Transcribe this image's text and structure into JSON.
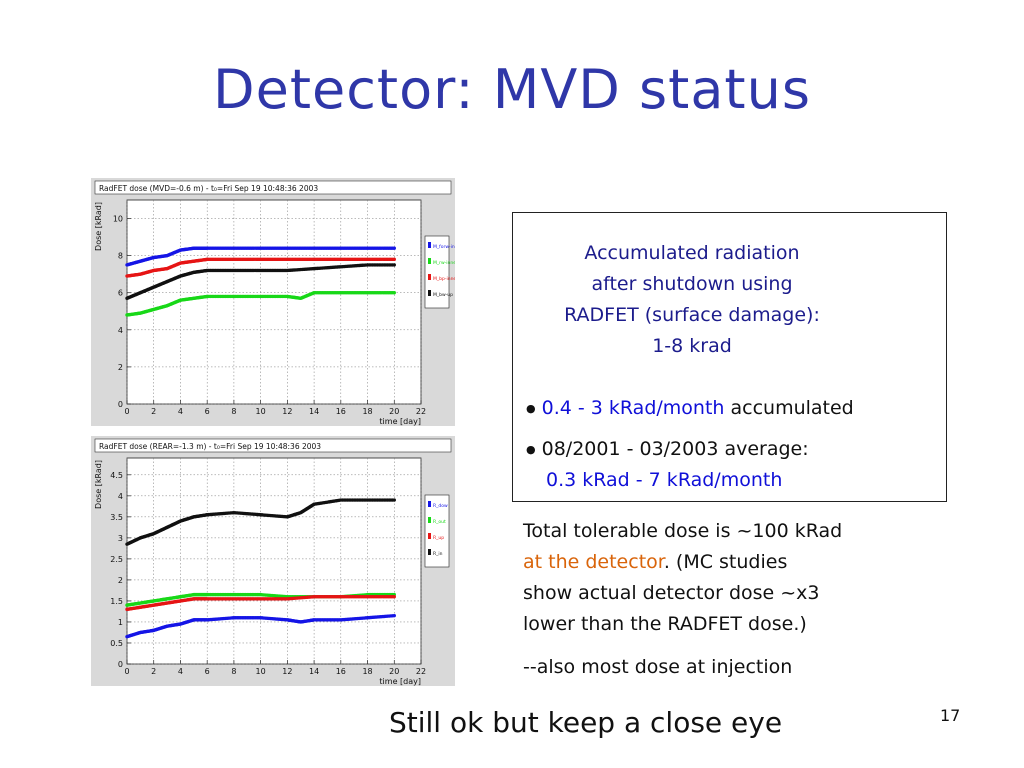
{
  "slide": {
    "title": "Detector: MVD status",
    "footer": "Still ok but keep a close eye",
    "page_number": "17"
  },
  "box": {
    "heading": [
      "Accumulated radiation",
      "after shutdown using",
      "RADFET (surface damage):",
      "1-8 krad"
    ],
    "bullet1_blue": "0.4 - 3 kRad/month",
    "bullet1_rest": " accumulated",
    "bullet2_line1": "08/2001 - 03/2003 average:",
    "bullet2_line2": "0.3 kRad - 7 kRad/month"
  },
  "text": {
    "l1": "Total tolerable dose is ~100 kRad",
    "l2_orange": "at the detector",
    "l2_rest": ". (MC studies",
    "l3": "show actual detector dose ~x3",
    "l4": "lower than the RADFET dose.)",
    "note": "--also most dose at injection"
  },
  "colors": {
    "title": "#2f37a8",
    "accent_blue": "#1010d8",
    "accent_orange": "#d9640a"
  },
  "chart_data": [
    {
      "type": "scatter",
      "title": "RadFET dose (MVD=-0.6 m) - t₀=Fri Sep 19 10:48:36 2003",
      "xlabel": "time [day]",
      "ylabel": "Dose [kRad]",
      "xlim": [
        0,
        22
      ],
      "ylim": [
        0,
        11
      ],
      "xticks": [
        0,
        2,
        4,
        6,
        8,
        10,
        12,
        14,
        16,
        18,
        20,
        22
      ],
      "yticks": [
        0,
        2,
        4,
        6,
        8,
        10
      ],
      "grid": true,
      "legend_position": "right",
      "series": [
        {
          "name": "M_forw-in",
          "color": "#1515e6",
          "x": [
            0,
            1,
            2,
            3,
            4,
            5,
            6,
            8,
            10,
            12,
            14,
            16,
            18,
            20
          ],
          "y": [
            7.5,
            7.7,
            7.9,
            8.0,
            8.3,
            8.4,
            8.4,
            8.4,
            8.4,
            8.4,
            8.4,
            8.4,
            8.4,
            8.4
          ]
        },
        {
          "name": "M_rw-inner",
          "color": "#18d818",
          "x": [
            0,
            1,
            2,
            3,
            4,
            5,
            6,
            8,
            10,
            12,
            13,
            14,
            16,
            18,
            20
          ],
          "y": [
            4.8,
            4.9,
            5.1,
            5.3,
            5.6,
            5.7,
            5.8,
            5.8,
            5.8,
            5.8,
            5.7,
            6.0,
            6.0,
            6.0,
            6.0
          ]
        },
        {
          "name": "M_bp-inner",
          "color": "#e61515",
          "x": [
            0,
            1,
            2,
            3,
            4,
            5,
            6,
            8,
            10,
            12,
            14,
            16,
            18,
            20
          ],
          "y": [
            6.9,
            7.0,
            7.2,
            7.3,
            7.6,
            7.7,
            7.8,
            7.8,
            7.8,
            7.8,
            7.8,
            7.8,
            7.8,
            7.8
          ]
        },
        {
          "name": "M_bw-up",
          "color": "#111111",
          "x": [
            0,
            1,
            2,
            3,
            4,
            5,
            6,
            8,
            10,
            12,
            14,
            16,
            18,
            20
          ],
          "y": [
            5.7,
            6.0,
            6.3,
            6.6,
            6.9,
            7.1,
            7.2,
            7.2,
            7.2,
            7.2,
            7.3,
            7.4,
            7.5,
            7.5
          ]
        }
      ]
    },
    {
      "type": "scatter",
      "title": "RadFET dose (REAR=-1.3 m) - t₀=Fri Sep 19 10:48:36 2003",
      "xlabel": "time [day]",
      "ylabel": "Dose [kRad]",
      "xlim": [
        0,
        22
      ],
      "ylim": [
        0,
        4.9
      ],
      "xticks": [
        0,
        2,
        4,
        6,
        8,
        10,
        12,
        14,
        16,
        18,
        20,
        22
      ],
      "yticks": [
        0,
        0.5,
        1,
        1.5,
        2,
        2.5,
        3,
        3.5,
        4,
        4.5
      ],
      "grid": true,
      "legend_position": "right",
      "series": [
        {
          "name": "R_dow",
          "color": "#1515e6",
          "x": [
            0,
            1,
            2,
            3,
            4,
            5,
            6,
            8,
            10,
            12,
            13,
            14,
            16,
            18,
            20
          ],
          "y": [
            0.65,
            0.75,
            0.8,
            0.9,
            0.95,
            1.05,
            1.05,
            1.1,
            1.1,
            1.05,
            1.0,
            1.05,
            1.05,
            1.1,
            1.15
          ]
        },
        {
          "name": "R_out",
          "color": "#18d818",
          "x": [
            0,
            1,
            2,
            3,
            4,
            5,
            6,
            8,
            10,
            12,
            14,
            16,
            18,
            20
          ],
          "y": [
            1.4,
            1.45,
            1.5,
            1.55,
            1.6,
            1.65,
            1.65,
            1.65,
            1.65,
            1.6,
            1.6,
            1.6,
            1.65,
            1.65
          ]
        },
        {
          "name": "R_up",
          "color": "#e61515",
          "x": [
            0,
            1,
            2,
            3,
            4,
            5,
            6,
            8,
            10,
            12,
            14,
            16,
            18,
            20
          ],
          "y": [
            1.3,
            1.35,
            1.4,
            1.45,
            1.5,
            1.55,
            1.55,
            1.55,
            1.55,
            1.55,
            1.6,
            1.6,
            1.6,
            1.6
          ]
        },
        {
          "name": "R_in",
          "color": "#111111",
          "x": [
            0,
            1,
            2,
            3,
            4,
            5,
            6,
            8,
            10,
            12,
            13,
            14,
            16,
            18,
            20
          ],
          "y": [
            2.85,
            3.0,
            3.1,
            3.25,
            3.4,
            3.5,
            3.55,
            3.6,
            3.55,
            3.5,
            3.6,
            3.8,
            3.9,
            3.9,
            3.9
          ]
        }
      ]
    }
  ]
}
